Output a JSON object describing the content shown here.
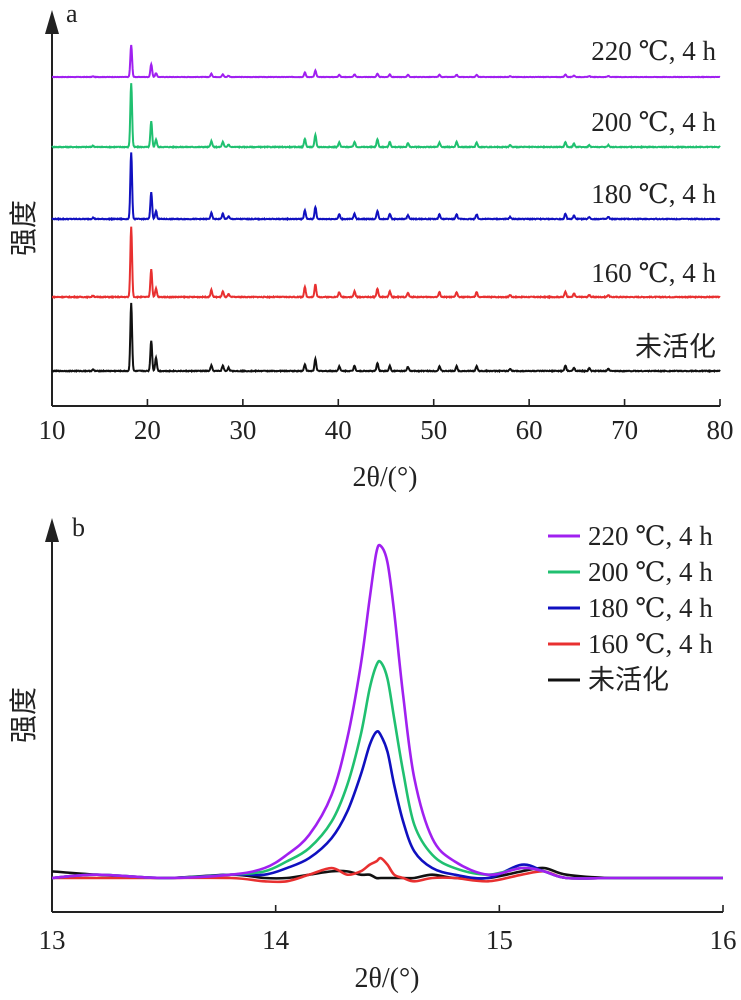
{
  "chart_data": [
    {
      "panel_label": "a",
      "type": "line",
      "xlabel": "2θ/(°)",
      "ylabel": "强度",
      "xlim": [
        10,
        80
      ],
      "xticks": [
        "10",
        "20",
        "30",
        "40",
        "50",
        "60",
        "70",
        "80"
      ],
      "layout": "stacked traces, offset vertically, labels at right",
      "peaks_2theta": [
        14.3,
        18.3,
        20.4,
        20.9,
        26.7,
        27.9,
        28.5,
        36.5,
        37.6,
        40.1,
        41.7,
        44.1,
        45.4,
        47.3,
        50.6,
        52.4,
        54.5,
        58.0,
        63.8,
        64.7,
        66.3,
        68.3
      ],
      "series": [
        {
          "name": "220 ℃, 4 h",
          "color": "#a020f0",
          "relative_intensities": [
            0.02,
            1.0,
            0.4,
            0.12,
            0.1,
            0.08,
            0.04,
            0.14,
            0.2,
            0.07,
            0.08,
            0.1,
            0.08,
            0.07,
            0.07,
            0.07,
            0.07,
            0.03,
            0.08,
            0.05,
            0.03,
            0.03
          ]
        },
        {
          "name": "200 ℃, 4 h",
          "color": "#20c070",
          "relative_intensities": [
            0.02,
            1.0,
            0.4,
            0.12,
            0.09,
            0.08,
            0.04,
            0.13,
            0.19,
            0.07,
            0.08,
            0.12,
            0.08,
            0.06,
            0.07,
            0.08,
            0.07,
            0.03,
            0.08,
            0.05,
            0.03,
            0.03
          ]
        },
        {
          "name": "180 ℃, 4 h",
          "color": "#1010c0",
          "relative_intensities": [
            0.02,
            1.0,
            0.4,
            0.12,
            0.09,
            0.08,
            0.04,
            0.13,
            0.18,
            0.07,
            0.08,
            0.12,
            0.08,
            0.06,
            0.07,
            0.07,
            0.07,
            0.03,
            0.08,
            0.05,
            0.03,
            0.03
          ]
        },
        {
          "name": "160 ℃, 4 h",
          "color": "#e83030",
          "relative_intensities": [
            0.02,
            1.0,
            0.4,
            0.12,
            0.1,
            0.08,
            0.04,
            0.14,
            0.18,
            0.07,
            0.08,
            0.12,
            0.08,
            0.06,
            0.07,
            0.07,
            0.07,
            0.03,
            0.08,
            0.05,
            0.03,
            0.03
          ]
        },
        {
          "name": "未活化",
          "color": "#111111",
          "relative_intensities": [
            0.02,
            1.0,
            0.45,
            0.2,
            0.08,
            0.08,
            0.05,
            0.1,
            0.18,
            0.07,
            0.08,
            0.12,
            0.08,
            0.06,
            0.07,
            0.07,
            0.07,
            0.03,
            0.08,
            0.05,
            0.04,
            0.03
          ]
        }
      ]
    },
    {
      "panel_label": "b",
      "type": "line",
      "xlabel": "2θ/(°)",
      "ylabel": "强度",
      "xlim": [
        13,
        16
      ],
      "xticks": [
        "13",
        "14",
        "15",
        "16"
      ],
      "legend_position": "top-right",
      "series": [
        {
          "name": "220 ℃, 4 h",
          "color": "#a020f0",
          "x": [
            13.0,
            13.2,
            13.5,
            13.8,
            13.95,
            14.05,
            14.15,
            14.25,
            14.32,
            14.38,
            14.42,
            14.45,
            14.47,
            14.5,
            14.53,
            14.57,
            14.62,
            14.7,
            14.8,
            14.95,
            15.1,
            15.2,
            15.3,
            15.5,
            15.8,
            16.0
          ],
          "y": [
            0.0,
            0.01,
            0.0,
            0.01,
            0.03,
            0.07,
            0.13,
            0.25,
            0.42,
            0.64,
            0.84,
            0.98,
            1.0,
            0.95,
            0.8,
            0.55,
            0.3,
            0.12,
            0.05,
            0.01,
            0.03,
            0.02,
            0.0,
            0.0,
            0.0,
            0.0
          ]
        },
        {
          "name": "200 ℃, 4 h",
          "color": "#20c070",
          "x": [
            13.0,
            13.2,
            13.5,
            13.8,
            13.95,
            14.05,
            14.15,
            14.25,
            14.32,
            14.38,
            14.42,
            14.45,
            14.47,
            14.5,
            14.53,
            14.57,
            14.62,
            14.7,
            14.8,
            14.95,
            15.1,
            15.2,
            15.3,
            15.5,
            15.8,
            16.0
          ],
          "y": [
            0.0,
            0.01,
            0.0,
            0.01,
            0.02,
            0.05,
            0.09,
            0.17,
            0.28,
            0.43,
            0.57,
            0.64,
            0.65,
            0.6,
            0.48,
            0.32,
            0.16,
            0.07,
            0.03,
            0.01,
            0.03,
            0.02,
            0.0,
            0.0,
            0.0,
            0.0
          ]
        },
        {
          "name": "180 ℃, 4 h",
          "color": "#1010c0",
          "x": [
            13.0,
            13.2,
            13.5,
            13.8,
            13.95,
            14.05,
            14.15,
            14.25,
            14.32,
            14.38,
            14.42,
            14.45,
            14.47,
            14.5,
            14.53,
            14.57,
            14.62,
            14.7,
            14.8,
            14.95,
            15.1,
            15.2,
            15.3,
            15.5,
            15.8,
            16.0
          ],
          "y": [
            0.0,
            0.01,
            0.0,
            0.01,
            0.01,
            0.03,
            0.06,
            0.12,
            0.2,
            0.31,
            0.4,
            0.44,
            0.43,
            0.38,
            0.28,
            0.17,
            0.08,
            0.03,
            0.01,
            0.0,
            0.04,
            0.02,
            0.0,
            0.0,
            0.0,
            0.0
          ]
        },
        {
          "name": "160 ℃, 4 h",
          "color": "#e83030",
          "x": [
            13.0,
            13.2,
            13.5,
            13.8,
            13.95,
            14.05,
            14.15,
            14.25,
            14.32,
            14.38,
            14.42,
            14.45,
            14.47,
            14.5,
            14.53,
            14.57,
            14.62,
            14.7,
            14.8,
            14.95,
            15.1,
            15.2,
            15.3,
            15.5,
            15.8,
            16.0
          ],
          "y": [
            0.0,
            0.0,
            0.0,
            0.0,
            -0.01,
            -0.01,
            0.01,
            0.03,
            0.01,
            0.02,
            0.04,
            0.05,
            0.06,
            0.04,
            0.01,
            0.0,
            -0.01,
            0.0,
            0.0,
            -0.01,
            0.01,
            0.02,
            0.0,
            0.0,
            0.0,
            0.0
          ]
        },
        {
          "name": "未活化",
          "color": "#111111",
          "x": [
            13.0,
            13.2,
            13.5,
            13.8,
            13.95,
            14.05,
            14.15,
            14.25,
            14.32,
            14.38,
            14.42,
            14.45,
            14.47,
            14.5,
            14.53,
            14.57,
            14.62,
            14.7,
            14.8,
            14.95,
            15.1,
            15.2,
            15.3,
            15.5,
            15.8,
            16.0
          ],
          "y": [
            0.02,
            0.01,
            0.0,
            0.01,
            0.0,
            0.0,
            0.01,
            0.02,
            0.02,
            0.01,
            0.01,
            0.0,
            0.0,
            0.0,
            0.0,
            0.0,
            0.0,
            0.01,
            0.0,
            0.0,
            0.02,
            0.03,
            0.01,
            0.0,
            0.0,
            0.0
          ]
        }
      ]
    }
  ]
}
